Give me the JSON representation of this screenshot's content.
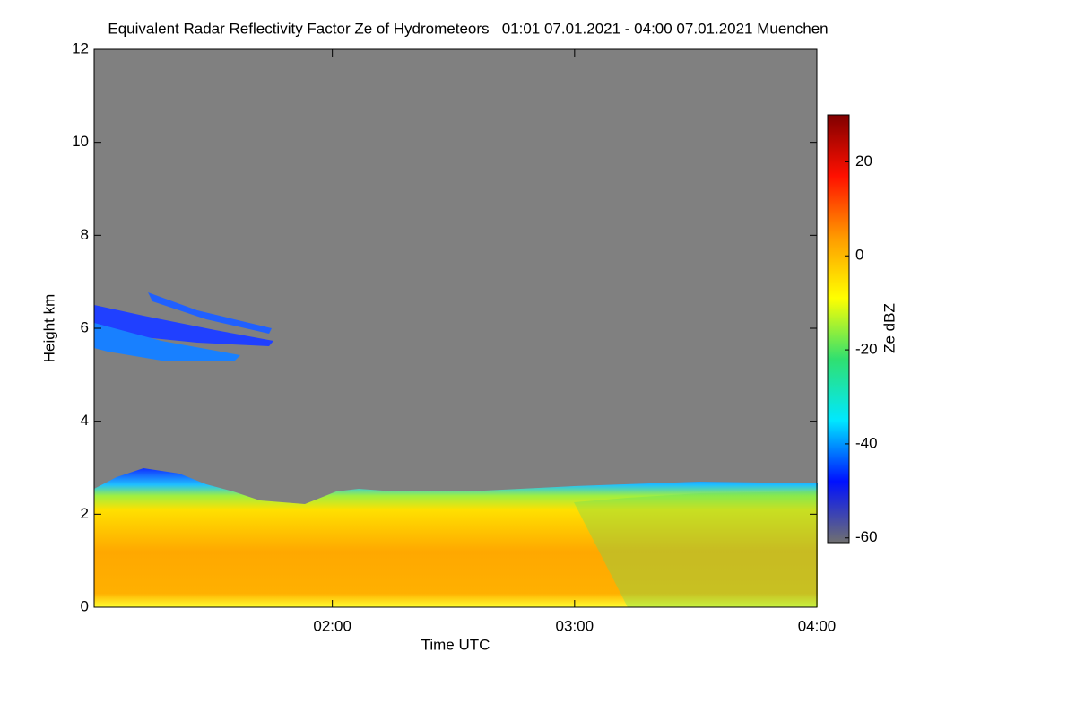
{
  "chart_data": {
    "type": "heatmap",
    "title": "Equivalent Radar Reflectivity Factor Ze of Hydrometeors   01:01 07.01.2021 - 04:00 07.01.2021 Muenchen",
    "x_label": "Time UTC",
    "y_label": "Height km",
    "colorbar_label": "Ze dBZ",
    "xlim": [
      1.0167,
      4.0
    ],
    "xticks": [
      {
        "value": 2,
        "label": "02:00"
      },
      {
        "value": 3,
        "label": "03:00"
      },
      {
        "value": 4,
        "label": "04:00"
      }
    ],
    "ylim": [
      0,
      12
    ],
    "yticks": [
      0,
      2,
      4,
      6,
      8,
      10,
      12
    ],
    "clim": [
      -61,
      30
    ],
    "cticks": [
      -60,
      -40,
      -20,
      0,
      20
    ],
    "colormap": [
      "#707070",
      "#0010ff",
      "#00e8ff",
      "#30e070",
      "#ffff00",
      "#ff9a00",
      "#ff1000",
      "#800000"
    ],
    "background": "#808080"
  }
}
